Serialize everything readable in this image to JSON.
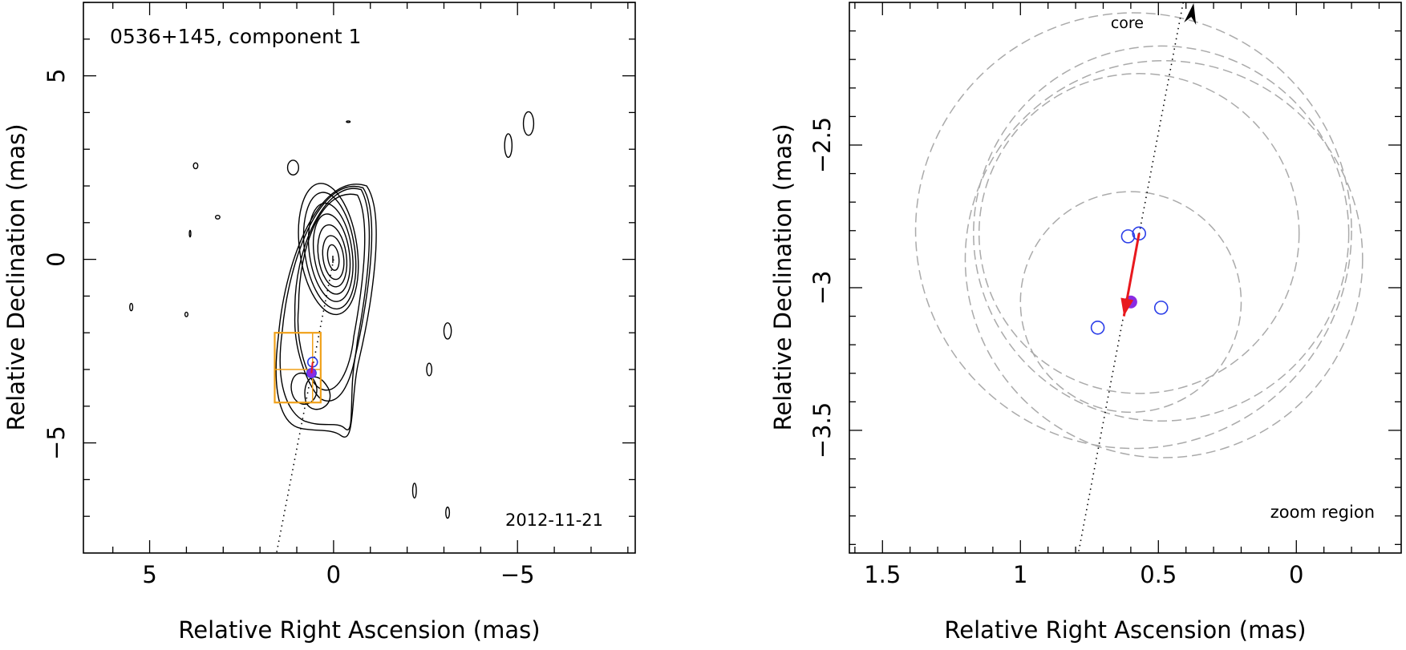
{
  "chart_data": [
    {
      "type": "contour",
      "title": "0536+145, component 1",
      "date_label": "2012-11-21",
      "xlabel": "Relative Right Ascension (mas)",
      "ylabel": "Relative Declination (mas)",
      "xlim": [
        6.8,
        -8.2
      ],
      "ylim": [
        -8.0,
        7.0
      ],
      "x_ticks": [
        {
          "value": 5,
          "label": "5"
        },
        {
          "value": 0,
          "label": "0"
        },
        {
          "value": -5,
          "label": "−5"
        }
      ],
      "y_ticks": [
        {
          "value": 5,
          "label": "5"
        },
        {
          "value": 0,
          "label": "0"
        },
        {
          "value": -5,
          "label": "−5"
        }
      ],
      "core_peak": [
        0.0,
        0.0
      ],
      "jet_direction_line": {
        "from": [
          0.0,
          0.0
        ],
        "to": [
          1.55,
          -8.0
        ],
        "style": "dotted"
      },
      "zoom_box": {
        "x": [
          0.35,
          1.6
        ],
        "y": [
          -3.9,
          -2.0
        ],
        "color": "#f0a11a"
      },
      "component_points": [
        {
          "x": 0.57,
          "y": -2.8,
          "style": "open-blue"
        },
        {
          "x": 0.6,
          "y": -3.1,
          "style": "filled-purple"
        }
      ]
    },
    {
      "type": "scatter",
      "xlabel": "Relative Right Ascension (mas)",
      "ylabel": "Relative Declination (mas)",
      "annotation": "zoom region",
      "core_label": "core",
      "xlim": [
        1.62,
        -0.38
      ],
      "ylim": [
        -3.93,
        -2.0
      ],
      "x_ticks": [
        {
          "value": 1.5,
          "label": "1.5"
        },
        {
          "value": 1,
          "label": "1"
        },
        {
          "value": 0.5,
          "label": "0.5"
        },
        {
          "value": 0,
          "label": "0"
        }
      ],
      "y_ticks": [
        {
          "value": -2.5,
          "label": "−2.5"
        },
        {
          "value": -3,
          "label": "−3"
        },
        {
          "value": -3.5,
          "label": "−3.5"
        }
      ],
      "open_points": [
        {
          "x": 0.61,
          "y": -2.82
        },
        {
          "x": 0.57,
          "y": -2.81
        },
        {
          "x": 0.72,
          "y": -3.14
        },
        {
          "x": 0.49,
          "y": -3.07
        }
      ],
      "mean_point": {
        "x": 0.6,
        "y": -3.05
      },
      "motion_vector": {
        "from": [
          0.57,
          -2.81
        ],
        "to": [
          0.625,
          -3.1
        ],
        "color": "#e8191e"
      },
      "core_arrow": {
        "from": [
          0.41,
          -2.0
        ],
        "to": [
          0.4,
          -1.96
        ]
      },
      "jet_line": {
        "from": [
          0.41,
          -2.0
        ],
        "to": [
          0.79,
          -3.93
        ]
      },
      "uncertainty_circles": [
        {
          "x": 0.6,
          "y": -3.05,
          "r": 0.4
        },
        {
          "x": 0.57,
          "y": -2.81,
          "r": 0.58
        },
        {
          "x": 0.49,
          "y": -2.81,
          "r": 0.68
        },
        {
          "x": 0.59,
          "y": -2.8,
          "r": 0.79
        },
        {
          "x": 0.48,
          "y": -2.9,
          "r": 0.72
        }
      ]
    }
  ]
}
